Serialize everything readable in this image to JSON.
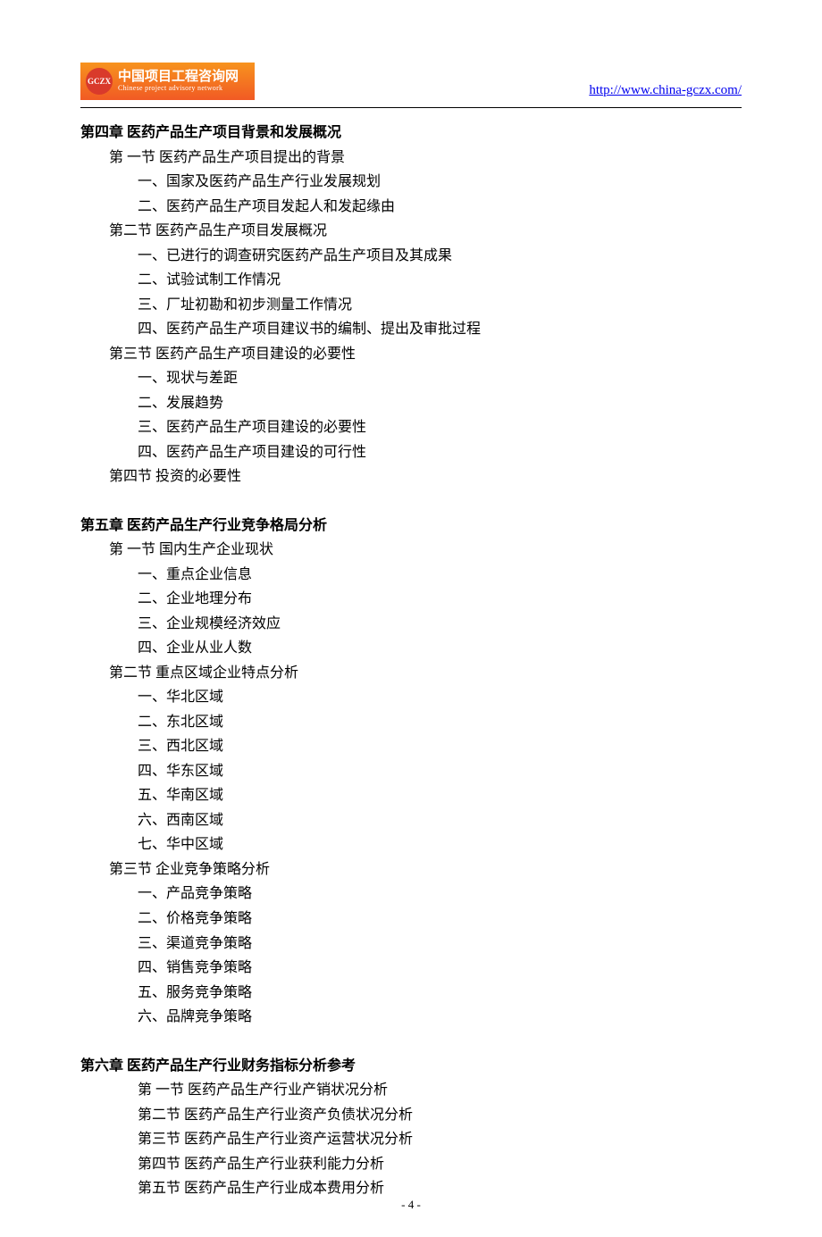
{
  "header": {
    "logo_cn": "中国项目工程咨询网",
    "logo_en": "Chinese project advisory network",
    "logo_badge": "GCZX",
    "url": "http://www.china-gczx.com/"
  },
  "chapter4": {
    "title": "第四章 医药产品生产项目背景和发展概况",
    "section1": {
      "title": "第 一节 医药产品生产项目提出的背景",
      "items": [
        "一、国家及医药产品生产行业发展规划",
        "二、医药产品生产项目发起人和发起缘由"
      ]
    },
    "section2": {
      "title": "第二节 医药产品生产项目发展概况",
      "items": [
        "一、已进行的调查研究医药产品生产项目及其成果",
        "二、试验试制工作情况",
        "三、厂址初勘和初步测量工作情况",
        "四、医药产品生产项目建议书的编制、提出及审批过程"
      ]
    },
    "section3": {
      "title": "第三节 医药产品生产项目建设的必要性",
      "items": [
        "一、现状与差距",
        "二、发展趋势",
        "三、医药产品生产项目建设的必要性",
        "四、医药产品生产项目建设的可行性"
      ]
    },
    "section4": {
      "title": "第四节  投资的必要性"
    }
  },
  "chapter5": {
    "title": "第五章 医药产品生产行业竞争格局分析",
    "section1": {
      "title": "第 一节  国内生产企业现状",
      "items": [
        "一、重点企业信息",
        "二、企业地理分布",
        "三、企业规模经济效应",
        "四、企业从业人数"
      ]
    },
    "section2": {
      "title": "第二节  重点区域企业特点分析",
      "items": [
        "一、华北区域",
        "二、东北区域",
        "三、西北区域",
        "四、华东区域",
        "五、华南区域",
        "六、西南区域",
        "七、华中区域"
      ]
    },
    "section3": {
      "title": "第三节  企业竞争策略分析",
      "items": [
        "一、产品竞争策略",
        "二、价格竞争策略",
        "三、渠道竞争策略",
        "四、销售竞争策略",
        "五、服务竞争策略",
        "六、品牌竞争策略"
      ]
    }
  },
  "chapter6": {
    "title": "第六章 医药产品生产行业财务指标分析参考",
    "sections": [
      "第 一节 医药产品生产行业产销状况分析",
      "第二节 医药产品生产行业资产负债状况分析",
      "第三节 医药产品生产行业资产运营状况分析",
      "第四节 医药产品生产行业获利能力分析",
      "第五节 医药产品生产行业成本费用分析"
    ]
  },
  "page_number": "- 4 -"
}
